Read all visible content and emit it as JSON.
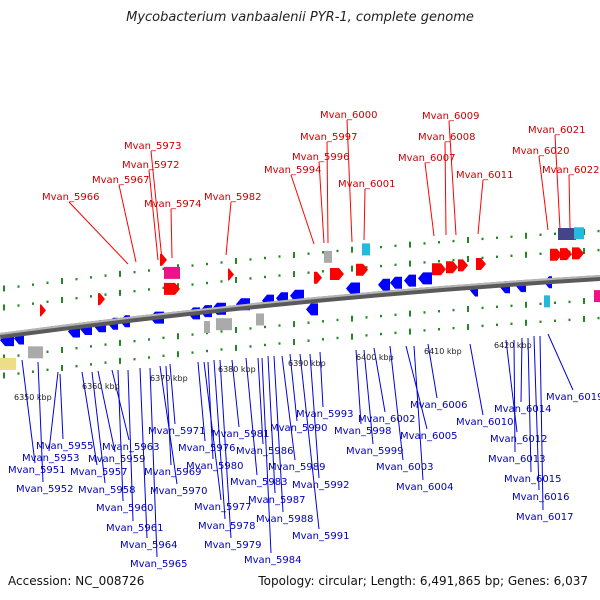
{
  "title": "Mycobacterium vanbaalenii PYR-1, complete genome",
  "accession": "Accession: NC_008726",
  "topology": "Topology: circular; Length: 6,491,865 bp; Genes: 6,037",
  "colors": {
    "forward_gene": "#ff0000",
    "reverse_gene": "#0000ff",
    "rna": "#ee1188",
    "pseudo": "#aaaaaa",
    "trna": "#22bbdd",
    "other": "#eedd88",
    "backbone": "#888888",
    "tick": "#228822"
  },
  "scale_ticks": [
    "6350 kbp",
    "6360 kbp",
    "6370 kbp",
    "6380 kbp",
    "6390 kbp",
    "6400 kbp",
    "6410 kbp",
    "6420 kbp"
  ],
  "top_labels": [
    "Mvan_5966",
    "Mvan_5967",
    "Mvan_5972",
    "Mvan_5973",
    "Mvan_5974",
    "Mvan_5982",
    "Mvan_5994",
    "Mvan_5996",
    "Mvan_5997",
    "Mvan_6000",
    "Mvan_6001",
    "Mvan_6007",
    "Mvan_6008",
    "Mvan_6009",
    "Mvan_6011",
    "Mvan_6020",
    "Mvan_6021",
    "Mvan_6022"
  ],
  "bottom_labels": [
    "Mvan_5951",
    "Mvan_5952",
    "Mvan_5953",
    "Mvan_5955",
    "Mvan_5957",
    "Mvan_5958",
    "Mvan_5959",
    "Mvan_5960",
    "Mvan_5961",
    "Mvan_5963",
    "Mvan_5964",
    "Mvan_5965",
    "Mvan_5969",
    "Mvan_5970",
    "Mvan_5971",
    "Mvan_5976",
    "Mvan_5977",
    "Mvan_5978",
    "Mvan_5979",
    "Mvan_5980",
    "Mvan_5981",
    "Mvan_5983",
    "Mvan_5984",
    "Mvan_5986",
    "Mvan_5987",
    "Mvan_5988",
    "Mvan_5989",
    "Mvan_5990",
    "Mvan_5991",
    "Mvan_5992",
    "Mvan_5993",
    "Mvan_5998",
    "Mvan_5999",
    "Mvan_6002",
    "Mvan_6003",
    "Mvan_6004",
    "Mvan_6005",
    "Mvan_6006",
    "Mvan_6010",
    "Mvan_6012",
    "Mvan_6013",
    "Mvan_6014",
    "Mvan_6015",
    "Mvan_6016",
    "Mvan_6017",
    "Mvan_6019"
  ]
}
